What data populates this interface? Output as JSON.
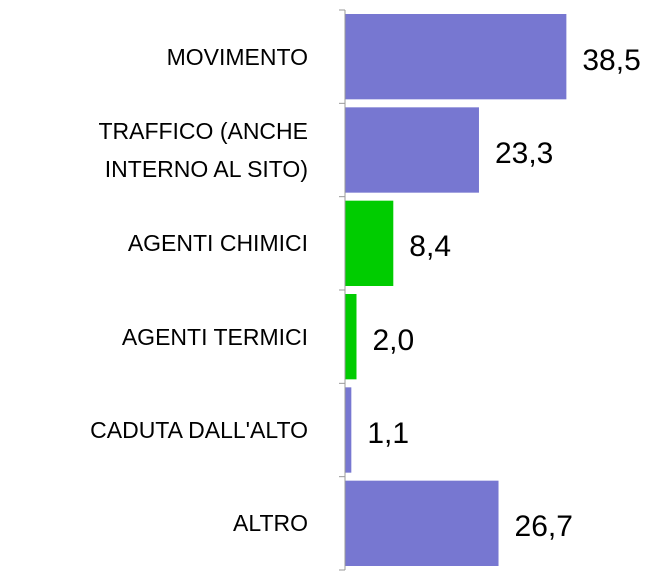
{
  "chart_data": {
    "type": "barh",
    "categories": [
      "MOVIMENTO",
      "TRAFFICO (ANCHE INTERNO AL SITO)",
      "AGENTI CHIMICI",
      "AGENTI TERMICI",
      "CADUTA DALL'ALTO",
      "ALTRO"
    ],
    "values": [
      38.5,
      23.3,
      8.4,
      2.0,
      1.1,
      26.7
    ],
    "value_labels": [
      "38,5",
      "23,3",
      "8,4",
      "2,0",
      "1,1",
      "26,7"
    ],
    "colors": [
      "#7777d1",
      "#7777d1",
      "#00cc00",
      "#00cc00",
      "#7777d1",
      "#7777d1"
    ],
    "xlim": [
      0,
      40
    ]
  }
}
